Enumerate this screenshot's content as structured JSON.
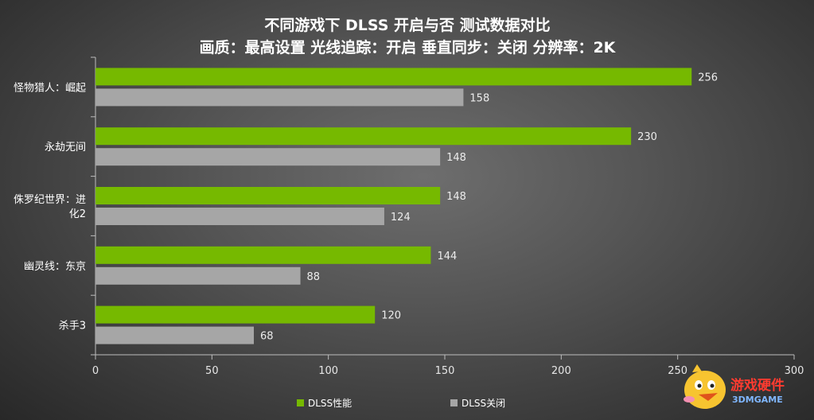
{
  "chart_data": {
    "type": "bar",
    "orientation": "horizontal",
    "title": "不同游戏下 DLSS 开启与否 测试数据对比",
    "subtitle": "画质：最高设置  光线追踪：开启  垂直同步：关闭  分辨率：2K",
    "categories": [
      "怪物猎人：崛起",
      "永劫无间",
      "侏罗纪世界：进化2",
      "幽灵线：东京",
      "杀手3"
    ],
    "category_lines": [
      [
        "怪物猎人：崛起"
      ],
      [
        "永劫无间"
      ],
      [
        "侏罗纪世界：进",
        "化2"
      ],
      [
        "幽灵线：东京"
      ],
      [
        "杀手3"
      ]
    ],
    "series": [
      {
        "name": "DLSS性能",
        "color": "#76b900",
        "values": [
          256,
          230,
          148,
          144,
          120
        ]
      },
      {
        "name": "DLSS关闭",
        "color": "#a6a6a6",
        "values": [
          158,
          148,
          124,
          88,
          68
        ]
      }
    ],
    "xlim": [
      0,
      300
    ],
    "xticks": [
      0,
      50,
      100,
      150,
      200,
      250,
      300
    ],
    "grid": false,
    "legend": "bottom"
  },
  "watermark": {
    "line1": "游戏硬件",
    "line2": "3DMGAME"
  }
}
